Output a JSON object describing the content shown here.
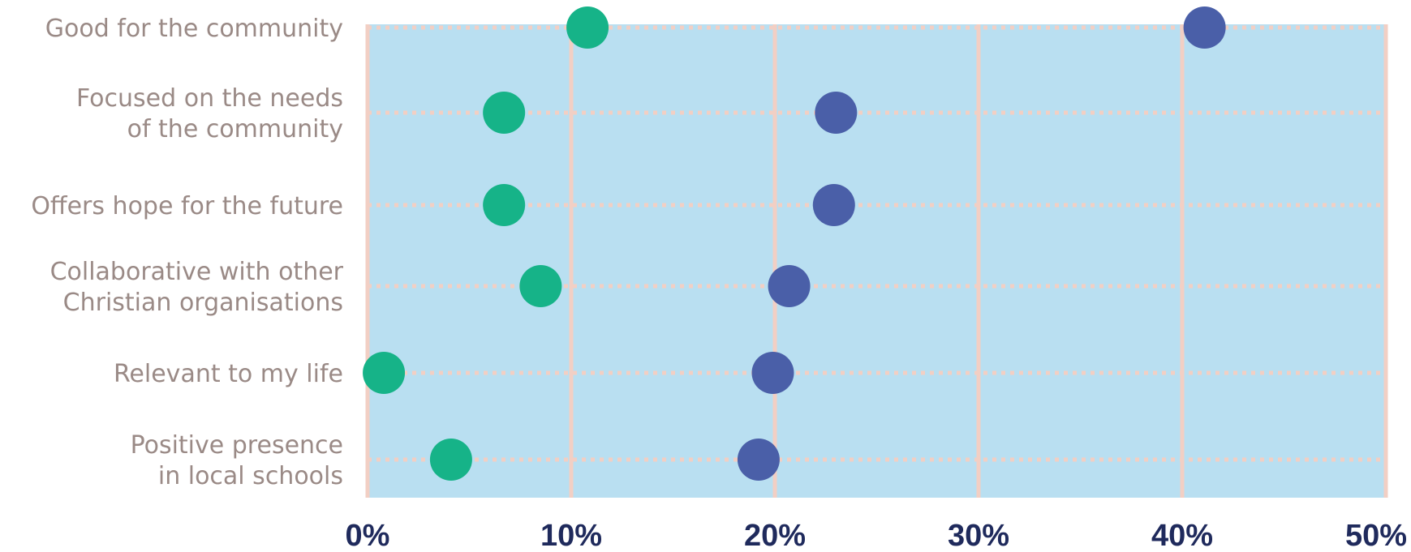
{
  "chart_data": {
    "type": "scatter",
    "title": "",
    "xlabel": "",
    "ylabel": "",
    "xlim": [
      0,
      50
    ],
    "x_ticks": [
      0,
      10,
      20,
      30,
      40,
      50
    ],
    "x_tick_labels": [
      "0%",
      "10%",
      "20%",
      "30%",
      "40%",
      "50%"
    ],
    "grid": true,
    "legend": "none",
    "plot_background": "#b9dff1",
    "grid_color": "#f2cfc4",
    "categories": [
      [
        "Good for the community"
      ],
      [
        "Focused on the needs",
        "of the community"
      ],
      [
        "Offers hope for the future"
      ],
      [
        "Collaborative with other",
        "Christian organisations"
      ],
      [
        "Relevant to my life"
      ],
      [
        "Positive presence",
        "in local schools"
      ]
    ],
    "series": [
      {
        "color": "#16b388",
        "values": [
          10.8,
          6.7,
          6.7,
          8.5,
          0.8,
          4.1
        ]
      },
      {
        "color": "#4a5fa8",
        "values": [
          41.1,
          23.0,
          22.9,
          20.7,
          19.9,
          19.2
        ]
      }
    ]
  }
}
